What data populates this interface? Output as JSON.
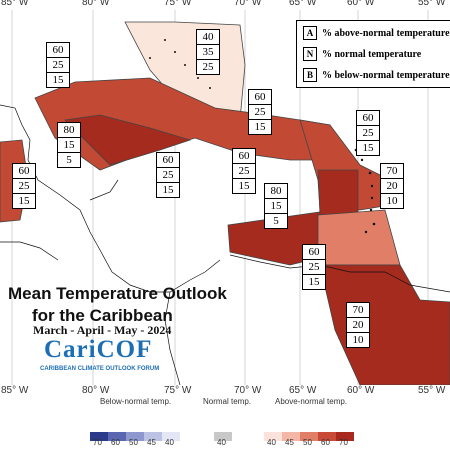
{
  "title_line1": "Mean Temperature Outlook",
  "title_line2": "for the Caribbean",
  "period": "March - April - May - 2024",
  "logo_text": "CariCOF",
  "logo_subtitle": "CARIBBEAN CLIMATE OUTLOOK FORUM",
  "longitudes_top": [
    "85° W",
    "80° W",
    "75° W",
    "70° W",
    "65° W",
    "60° W",
    "55° W"
  ],
  "longitudes_bottom": [
    "85° W",
    "80° W",
    "75° W",
    "70° W",
    "65° W",
    "60° W",
    "55° W"
  ],
  "legend": {
    "rows": [
      {
        "key": "A",
        "text": "% above-normal temperature"
      },
      {
        "key": "N",
        "text": "% normal temperature"
      },
      {
        "key": "B",
        "text": "% below-normal temperature"
      }
    ]
  },
  "boxes": [
    {
      "A": "40",
      "N": "35",
      "B": "25"
    },
    {
      "A": "60",
      "N": "25",
      "B": "15"
    },
    {
      "A": "80",
      "N": "15",
      "B": "5"
    },
    {
      "A": "60",
      "N": "25",
      "B": "15"
    },
    {
      "A": "60",
      "N": "25",
      "B": "15"
    },
    {
      "A": "60",
      "N": "25",
      "B": "15"
    },
    {
      "A": "60",
      "N": "25",
      "B": "15"
    },
    {
      "A": "60",
      "N": "25",
      "B": "15"
    },
    {
      "A": "70",
      "N": "20",
      "B": "10"
    },
    {
      "A": "80",
      "N": "15",
      "B": "5"
    },
    {
      "A": "60",
      "N": "25",
      "B": "15"
    },
    {
      "A": "70",
      "N": "20",
      "B": "10"
    }
  ],
  "colorbar": {
    "below_label": "Below-normal temp.",
    "normal_label": "Normal temp.",
    "above_label": "Above-normal temp.",
    "below_ticks": [
      "70",
      "60",
      "50",
      "45",
      "40"
    ],
    "normal_ticks": [
      "40"
    ],
    "above_ticks": [
      "40",
      "45",
      "50",
      "60",
      "70"
    ],
    "below_colors": [
      "#2c3a8c",
      "#5a67b0",
      "#8e98cf",
      "#bcc2e3",
      "#e3e6f4"
    ],
    "normal_color": "#c8c8c8",
    "above_colors": [
      "#fbe3dc",
      "#f4b6a6",
      "#e07e68",
      "#c94a36",
      "#a82a1e"
    ]
  }
}
